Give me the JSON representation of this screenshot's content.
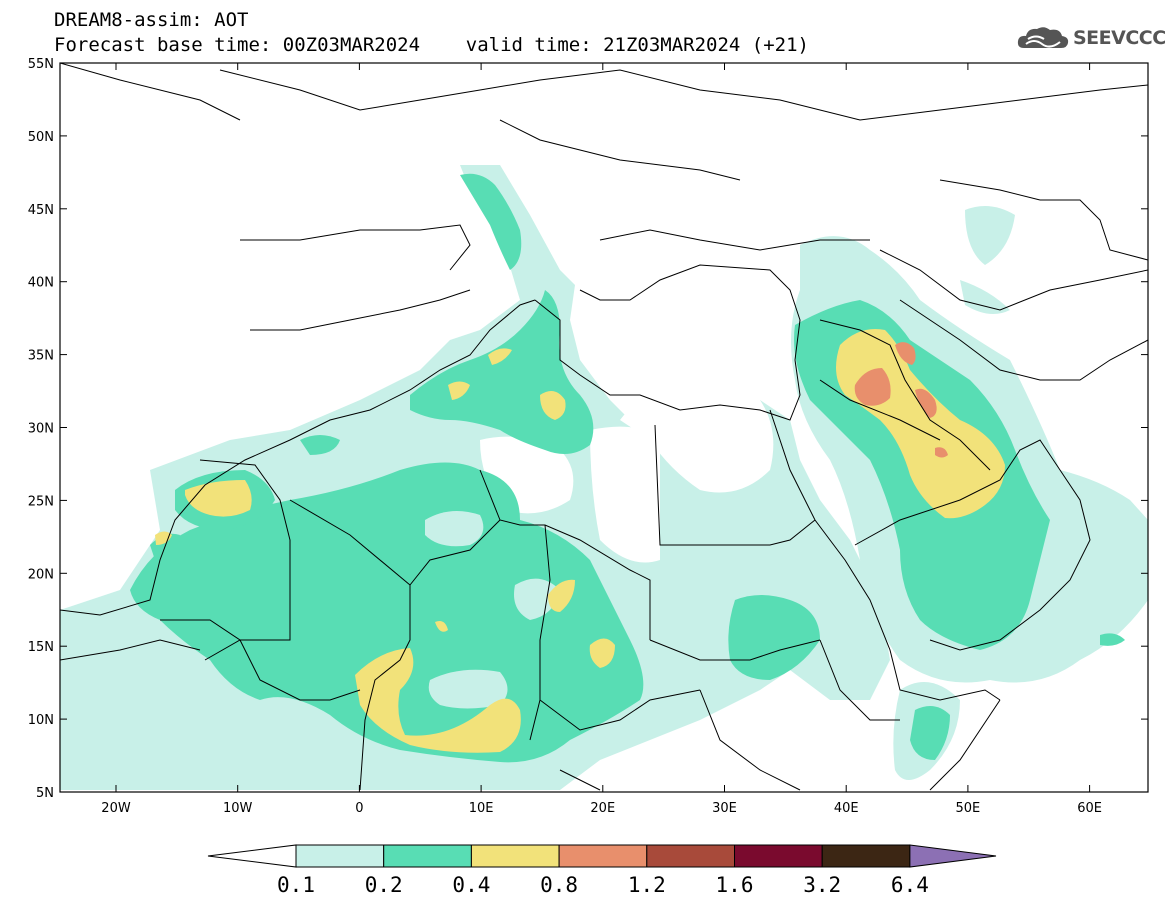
{
  "header": {
    "line1": "DREAM8-assim: AOT",
    "line2": "Forecast base time: 00Z03MAR2024    valid time: 21Z03MAR2024 (+21)"
  },
  "logo": {
    "text": "SEEVCCC",
    "icon": "cloud-icon"
  },
  "map": {
    "lat_labels": [
      "55N",
      "50N",
      "45N",
      "40N",
      "35N",
      "30N",
      "25N",
      "20N",
      "15N",
      "10N",
      "5N"
    ],
    "lon_labels": [
      "20W",
      "10W",
      "0",
      "10E",
      "20E",
      "30E",
      "40E",
      "50E",
      "60E"
    ]
  },
  "legend": {
    "labels": [
      "0.1",
      "0.2",
      "0.4",
      "0.8",
      "1.2",
      "1.6",
      "3.2",
      "6.4"
    ],
    "colors": [
      "#ffffff",
      "#c8f0e8",
      "#58ddb4",
      "#f2e27a",
      "#e88f6c",
      "#a84a3a",
      "#7a0a2e",
      "#3c2614",
      "#8c70b4"
    ]
  }
}
